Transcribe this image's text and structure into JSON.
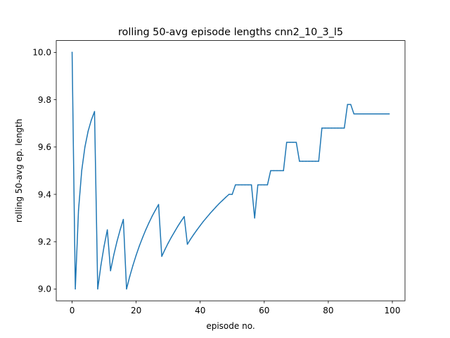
{
  "chart_data": {
    "type": "line",
    "title": "rolling 50-avg episode lengths cnn2_10_3_l5",
    "xlabel": "episode no.",
    "ylabel": "rolling 50-avg ep. length",
    "xlim": [
      -4.95,
      103.95
    ],
    "ylim": [
      8.95,
      10.05
    ],
    "xticks": [
      0,
      20,
      40,
      60,
      80,
      100
    ],
    "yticks": [
      9.0,
      9.2,
      9.4,
      9.6,
      9.8,
      10.0
    ],
    "xtick_labels": [
      "0",
      "20",
      "40",
      "60",
      "80",
      "100"
    ],
    "ytick_labels": [
      "9.0",
      "9.2",
      "9.4",
      "9.6",
      "9.8",
      "10.0"
    ],
    "grid": false,
    "legend": "none",
    "series": [
      {
        "color": "#1f77b4",
        "x": [
          0,
          1,
          2,
          3,
          4,
          5,
          6,
          7,
          8,
          9,
          10,
          11,
          12,
          13,
          14,
          15,
          16,
          17,
          18,
          19,
          20,
          21,
          22,
          23,
          24,
          25,
          26,
          27,
          28,
          29,
          30,
          31,
          32,
          33,
          34,
          35,
          36,
          37,
          38,
          39,
          40,
          41,
          42,
          43,
          44,
          45,
          46,
          47,
          48,
          49,
          50,
          51,
          52,
          53,
          54,
          55,
          56,
          57,
          58,
          59,
          60,
          61,
          62,
          63,
          64,
          65,
          66,
          67,
          68,
          69,
          70,
          71,
          72,
          73,
          74,
          75,
          76,
          77,
          78,
          79,
          80,
          81,
          82,
          83,
          84,
          85,
          86,
          87,
          88,
          89,
          90,
          91,
          92,
          93,
          94,
          95,
          96,
          97,
          98,
          99
        ],
        "y": [
          10.0,
          9.0,
          9.333,
          9.5,
          9.6,
          9.667,
          9.714,
          9.75,
          9.0,
          9.1,
          9.182,
          9.25,
          9.077,
          9.143,
          9.2,
          9.25,
          9.294,
          9.0,
          9.053,
          9.1,
          9.143,
          9.182,
          9.217,
          9.25,
          9.28,
          9.308,
          9.333,
          9.357,
          9.138,
          9.167,
          9.194,
          9.219,
          9.242,
          9.265,
          9.286,
          9.306,
          9.189,
          9.211,
          9.231,
          9.25,
          9.268,
          9.286,
          9.302,
          9.318,
          9.333,
          9.348,
          9.362,
          9.375,
          9.388,
          9.4,
          9.4,
          9.44,
          9.44,
          9.44,
          9.44,
          9.44,
          9.44,
          9.3,
          9.44,
          9.44,
          9.44,
          9.44,
          9.5,
          9.5,
          9.5,
          9.5,
          9.5,
          9.62,
          9.62,
          9.62,
          9.62,
          9.54,
          9.54,
          9.54,
          9.54,
          9.54,
          9.54,
          9.54,
          9.68,
          9.68,
          9.68,
          9.68,
          9.68,
          9.68,
          9.68,
          9.68,
          9.78,
          9.78,
          9.74,
          9.74,
          9.74,
          9.74,
          9.74,
          9.74,
          9.74,
          9.74,
          9.74,
          9.74,
          9.74,
          9.74
        ]
      }
    ]
  }
}
